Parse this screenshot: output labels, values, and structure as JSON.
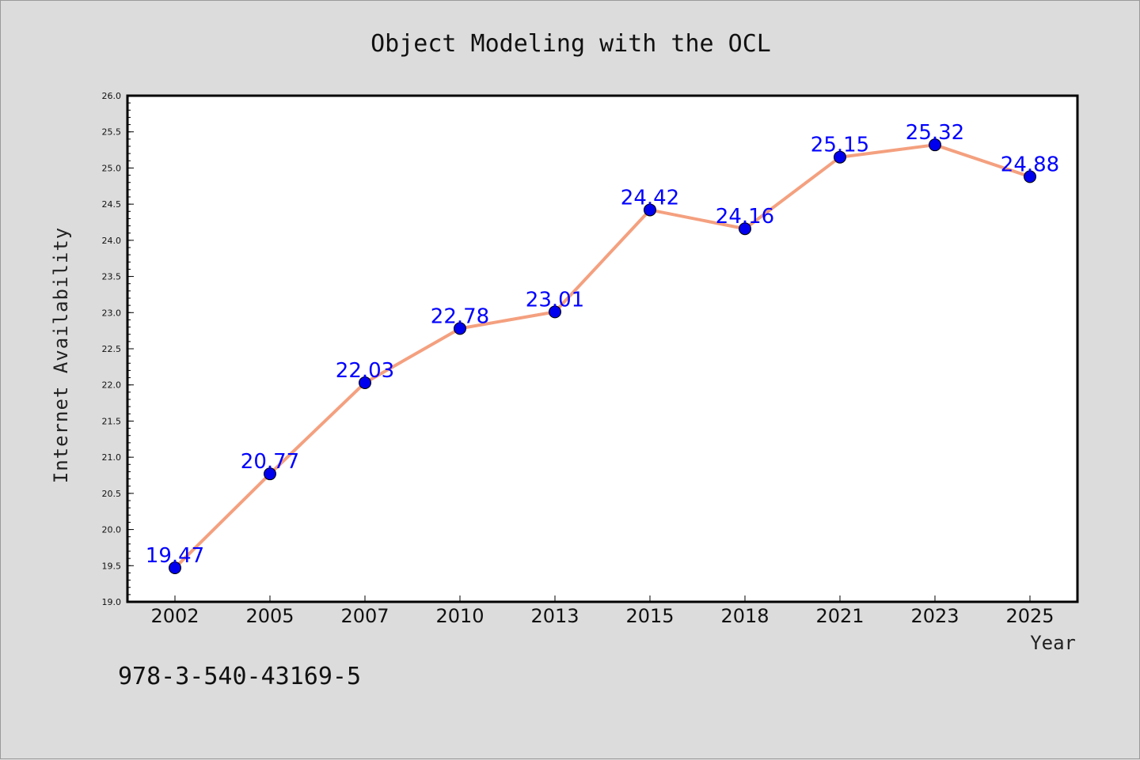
{
  "chart_data": {
    "type": "line",
    "title": "Object Modeling with the OCL",
    "xlabel": "Year",
    "ylabel": "Internet Availability",
    "categories": [
      "2002",
      "2005",
      "2007",
      "2010",
      "2013",
      "2015",
      "2018",
      "2021",
      "2023",
      "2025"
    ],
    "series": [
      {
        "values": [
          19.47,
          20.77,
          22.03,
          22.78,
          23.01,
          24.42,
          24.16,
          25.15,
          25.32,
          24.88
        ],
        "data_labels": [
          "19.47",
          "20.77",
          "22.03",
          "22.78",
          "23.01",
          "24.42",
          "24.16",
          "25.15",
          "25.32",
          "24.88"
        ]
      }
    ],
    "ylim": [
      19.0,
      26.0
    ],
    "yticks": [
      "19.0",
      "19.5",
      "20.0",
      "20.5",
      "21.0",
      "21.5",
      "22.0",
      "22.5",
      "23.0",
      "23.5",
      "24.0",
      "24.5",
      "25.0",
      "25.5",
      "26.0"
    ],
    "grid": false,
    "colors": {
      "line": "#f4a07f",
      "marker": "#0000ee",
      "data_label": "#0000ff",
      "plot_bg": "#ffffff",
      "page_bg": "#dcdcdc"
    }
  },
  "caption": "978-3-540-43169-5"
}
